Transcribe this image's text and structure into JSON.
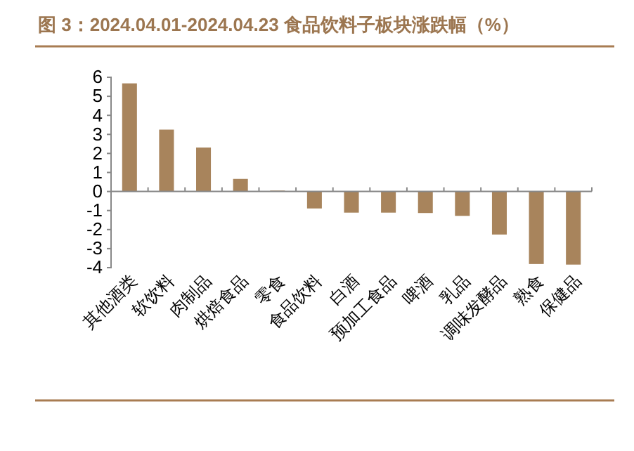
{
  "chart_data": {
    "type": "bar",
    "title": "图 3：2024.04.01-2024.04.23 食品饮料子板块涨跌幅（%）",
    "categories": [
      "其他酒类",
      "软饮料",
      "肉制品",
      "烘焙食品",
      "零食",
      "食品饮料",
      "白酒",
      "预加工食品",
      "啤酒",
      "乳品",
      "调味发酵品",
      "熟食",
      "保健品"
    ],
    "values": [
      5.68,
      3.25,
      2.31,
      0.66,
      0.05,
      -0.89,
      -1.11,
      -1.11,
      -1.13,
      -1.28,
      -2.26,
      -3.81,
      -3.84
    ],
    "color": "#a8845c",
    "ylim": [
      -4,
      6
    ],
    "yticks": [
      -4,
      -3,
      -2,
      -1,
      0,
      1,
      2,
      3,
      4,
      5,
      6
    ]
  }
}
